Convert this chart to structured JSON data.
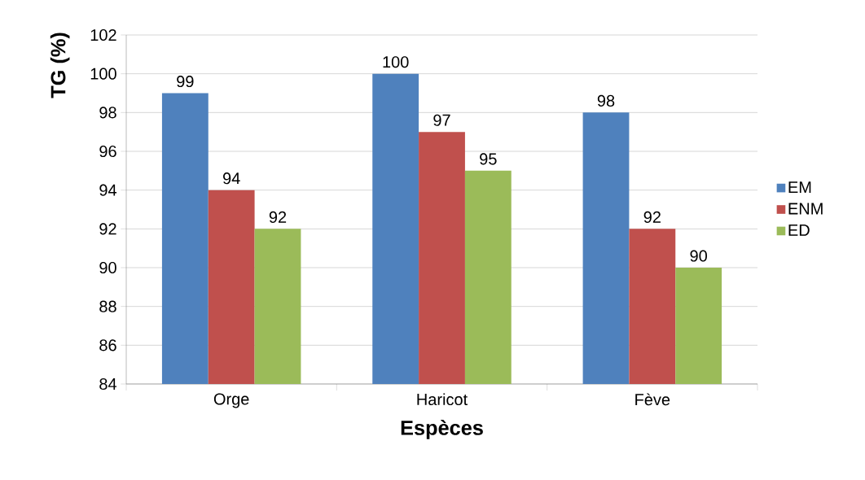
{
  "chart_data": {
    "type": "bar",
    "xlabel": "Espèces",
    "ylabel": "TG (%)",
    "categories": [
      "Orge",
      "Haricot",
      "Fève"
    ],
    "series": [
      {
        "name": "EM",
        "color": "#4f81bd",
        "values": [
          99,
          100,
          98
        ]
      },
      {
        "name": "ENM",
        "color": "#c0504d",
        "values": [
          94,
          97,
          92
        ]
      },
      {
        "name": "ED",
        "color": "#9bbb59",
        "values": [
          92,
          95,
          90
        ]
      }
    ],
    "ylim": [
      84,
      102
    ],
    "yticks": [
      84,
      86,
      88,
      90,
      92,
      94,
      96,
      98,
      100,
      102
    ],
    "grid": "y",
    "legend": "right",
    "data_labels": true
  }
}
